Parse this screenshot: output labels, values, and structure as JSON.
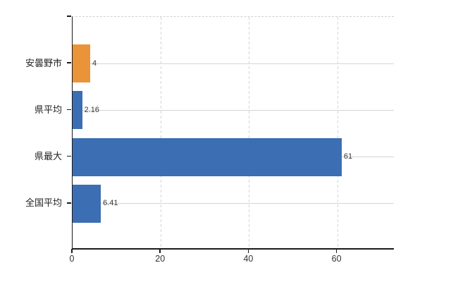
{
  "colors": {
    "bar_blue": "#3B6EB2",
    "bar_orange": "#EB9338",
    "grid": "#D2D7D2",
    "axis": "#1A1A1A",
    "text": "#333333"
  },
  "chart_data": {
    "type": "bar",
    "orientation": "horizontal",
    "categories": [
      "安曇野市",
      "県平均",
      "県最大",
      "全国平均"
    ],
    "values": [
      4,
      2.16,
      61,
      6.41
    ],
    "value_labels": [
      "4",
      "2.16",
      "61",
      "6.41"
    ],
    "bar_colors": [
      "#EB9338",
      "#3B6EB2",
      "#3B6EB2",
      "#3B6EB2"
    ],
    "series": [
      {
        "name": "",
        "values": [
          4,
          2.16,
          61,
          6.41
        ]
      }
    ],
    "xlabel": "",
    "ylabel": "",
    "xlim": [
      0,
      73
    ],
    "xticks": [
      0,
      20,
      40,
      60
    ],
    "xtick_labels": [
      "0",
      "20",
      "40",
      "60"
    ],
    "grid": {
      "vertical_style": "dashed",
      "horizontal_style": "solid",
      "top_border_style": "dashed"
    },
    "legend": "none",
    "title": ""
  }
}
